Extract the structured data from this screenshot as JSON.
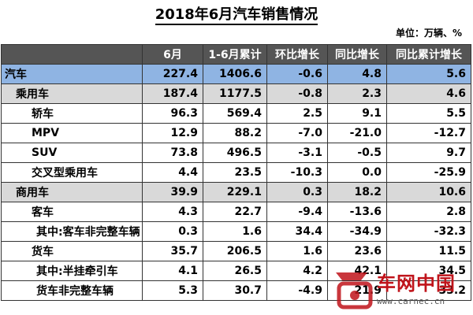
{
  "header": {
    "title": "2018年6月汽车销售情况",
    "unit": "单位：万辆、%"
  },
  "table": {
    "columns": [
      "",
      "6月",
      "1-6月累计",
      "环比增长",
      "同比增长",
      "同比累计增长"
    ],
    "rows": [
      [
        "汽车",
        "227.4",
        "1406.6",
        "-0.6",
        "4.8",
        "5.6"
      ],
      [
        "乘用车",
        "187.4",
        "1177.5",
        "-0.8",
        "2.3",
        "4.6"
      ],
      [
        "轿车",
        "96.3",
        "569.4",
        "2.5",
        "9.1",
        "5.5"
      ],
      [
        "MPV",
        "12.9",
        "88.2",
        "-7.0",
        "-21.0",
        "-12.7"
      ],
      [
        "SUV",
        "73.8",
        "496.5",
        "-3.1",
        "-0.5",
        "9.7"
      ],
      [
        "交叉型乘用车",
        "4.4",
        "23.5",
        "-10.3",
        "0.0",
        "-25.9"
      ],
      [
        "商用车",
        "39.9",
        "229.1",
        "0.3",
        "18.2",
        "10.6"
      ],
      [
        "客车",
        "4.3",
        "22.7",
        "-9.4",
        "-13.6",
        "2.8"
      ],
      [
        "其中:客车非完整车辆",
        "0.3",
        "1.6",
        "34.4",
        "-34.9",
        "-32.3"
      ],
      [
        "货车",
        "35.7",
        "206.5",
        "1.6",
        "23.6",
        "11.5"
      ],
      [
        "其中:半挂牵引车",
        "4.1",
        "26.5",
        "4.2",
        "42.1",
        "34.5"
      ],
      [
        "货车非完整车辆",
        "5.3",
        "30.7",
        "-4.9",
        "21.9",
        "33.2"
      ]
    ]
  },
  "watermark": {
    "name": "车网中国",
    "url": "www.carnec.cn"
  }
}
